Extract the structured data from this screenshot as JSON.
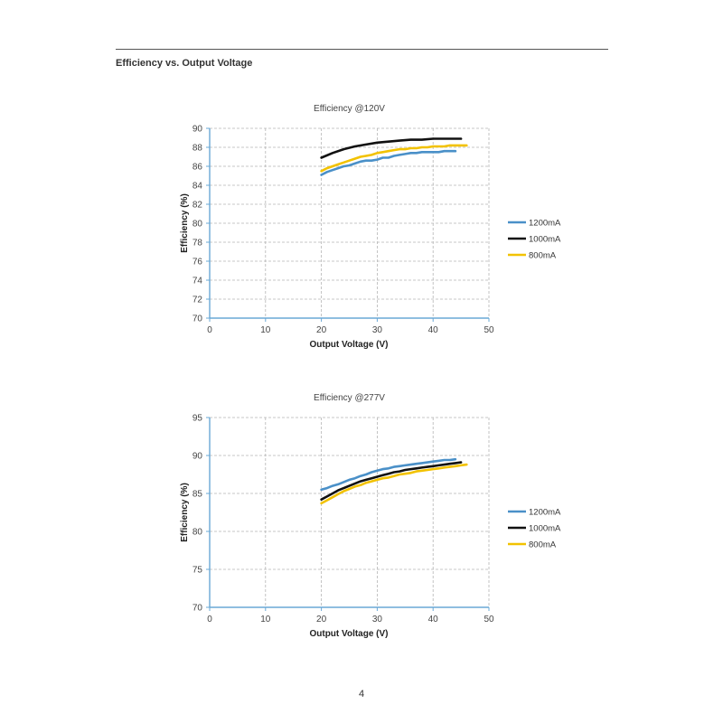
{
  "page": {
    "section_title": "Efficiency vs. Output Voltage",
    "page_number": "4"
  },
  "colors": {
    "1200mA": "#4a90c8",
    "1000mA": "#111111",
    "800mA": "#f2c200",
    "axis": "#6aa8d6",
    "grid": "#b5b5b5"
  },
  "chart_data": [
    {
      "type": "line",
      "title": "Efficiency @120V",
      "xlabel": "Output Voltage (V)",
      "ylabel": "Efficiency (%)",
      "xlim": [
        0,
        50
      ],
      "ylim": [
        70,
        90
      ],
      "xticks": [
        0,
        10,
        20,
        30,
        40,
        50
      ],
      "yticks": [
        70,
        72,
        74,
        76,
        78,
        80,
        82,
        84,
        86,
        88,
        90
      ],
      "grid": true,
      "legend_position": "right",
      "series": [
        {
          "name": "1200mA",
          "x": [
            20,
            21,
            22,
            23,
            24,
            25,
            26,
            27,
            28,
            29,
            30,
            31,
            32,
            33,
            34,
            35,
            36,
            37,
            38,
            39,
            40,
            41,
            42,
            43,
            44
          ],
          "y": [
            85.1,
            85.4,
            85.6,
            85.8,
            86.0,
            86.1,
            86.3,
            86.5,
            86.6,
            86.6,
            86.7,
            86.9,
            86.9,
            87.1,
            87.2,
            87.3,
            87.4,
            87.4,
            87.5,
            87.5,
            87.5,
            87.5,
            87.6,
            87.6,
            87.6
          ]
        },
        {
          "name": "1000mA",
          "x": [
            20,
            22,
            24,
            26,
            28,
            30,
            32,
            34,
            36,
            38,
            40,
            42,
            44,
            45
          ],
          "y": [
            86.9,
            87.4,
            87.8,
            88.1,
            88.3,
            88.5,
            88.6,
            88.7,
            88.8,
            88.8,
            88.9,
            88.9,
            88.9,
            88.9
          ]
        },
        {
          "name": "800mA",
          "x": [
            20,
            21,
            22,
            23,
            24,
            25,
            26,
            27,
            28,
            29,
            30,
            31,
            32,
            33,
            34,
            35,
            36,
            37,
            38,
            39,
            40,
            41,
            42,
            43,
            44,
            45,
            46
          ],
          "y": [
            85.5,
            85.8,
            86.0,
            86.2,
            86.4,
            86.6,
            86.8,
            87.0,
            87.1,
            87.2,
            87.4,
            87.5,
            87.6,
            87.7,
            87.8,
            87.8,
            87.9,
            87.9,
            88.0,
            88.0,
            88.1,
            88.1,
            88.1,
            88.2,
            88.2,
            88.2,
            88.2
          ]
        }
      ]
    },
    {
      "type": "line",
      "title": "Efficiency @277V",
      "xlabel": "Output Voltage (V)",
      "ylabel": "Efficiency (%)",
      "xlim": [
        0,
        50
      ],
      "ylim": [
        70,
        95
      ],
      "xticks": [
        0,
        10,
        20,
        30,
        40,
        50
      ],
      "yticks": [
        70,
        75,
        80,
        85,
        90,
        95
      ],
      "grid": true,
      "legend_position": "right",
      "series": [
        {
          "name": "1200mA",
          "x": [
            20,
            21,
            22,
            23,
            24,
            25,
            26,
            27,
            28,
            29,
            30,
            31,
            32,
            33,
            34,
            35,
            36,
            37,
            38,
            39,
            40,
            41,
            42,
            43,
            44
          ],
          "y": [
            85.5,
            85.7,
            86.0,
            86.2,
            86.5,
            86.8,
            87.0,
            87.3,
            87.5,
            87.8,
            88.0,
            88.2,
            88.3,
            88.5,
            88.6,
            88.7,
            88.8,
            88.9,
            89.0,
            89.1,
            89.2,
            89.3,
            89.4,
            89.4,
            89.5
          ]
        },
        {
          "name": "1000mA",
          "x": [
            20,
            21,
            22,
            23,
            24,
            25,
            26,
            27,
            28,
            29,
            30,
            31,
            32,
            33,
            34,
            35,
            36,
            37,
            38,
            39,
            40,
            41,
            42,
            43,
            44,
            45
          ],
          "y": [
            84.2,
            84.6,
            85.0,
            85.4,
            85.7,
            86.0,
            86.3,
            86.6,
            86.8,
            87.0,
            87.2,
            87.4,
            87.6,
            87.8,
            87.9,
            88.1,
            88.2,
            88.3,
            88.4,
            88.5,
            88.6,
            88.7,
            88.8,
            88.9,
            89.0,
            89.1
          ]
        },
        {
          "name": "800mA",
          "x": [
            20,
            21,
            22,
            23,
            24,
            25,
            26,
            27,
            28,
            29,
            30,
            31,
            32,
            33,
            34,
            35,
            36,
            37,
            38,
            39,
            40,
            41,
            42,
            43,
            44,
            45,
            46
          ],
          "y": [
            83.7,
            84.1,
            84.5,
            84.9,
            85.3,
            85.6,
            85.9,
            86.1,
            86.4,
            86.6,
            86.8,
            87.0,
            87.1,
            87.3,
            87.5,
            87.6,
            87.7,
            87.9,
            88.0,
            88.1,
            88.2,
            88.3,
            88.4,
            88.5,
            88.6,
            88.7,
            88.8
          ]
        }
      ]
    }
  ]
}
